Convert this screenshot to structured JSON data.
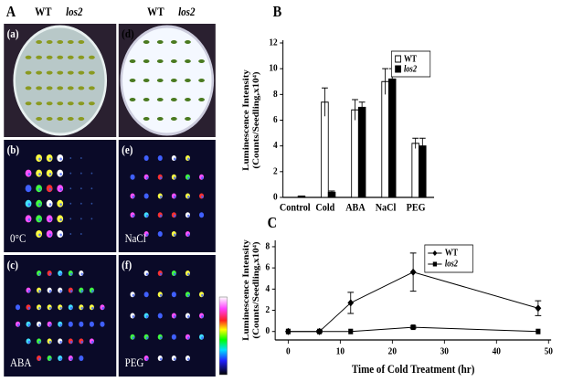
{
  "figure": {
    "panel_a": {
      "label": "A",
      "header_left": [
        "WT",
        "los2"
      ],
      "header_right": [
        "WT",
        "los2"
      ],
      "photos": [
        {
          "tag": "(a)"
        },
        {
          "tag": "(d)"
        },
        {
          "tag": "(b)",
          "condition": "0°C"
        },
        {
          "tag": "(e)",
          "condition": "NaCl"
        },
        {
          "tag": "(c)",
          "condition": "ABA"
        },
        {
          "tag": "(f)",
          "condition": "PEG"
        }
      ]
    }
  },
  "chart_data": [
    {
      "type": "bar",
      "panel": "B",
      "ylabel": [
        "Luminescence Intensity",
        "(Counts/Seedling,x10⁴)"
      ],
      "categories": [
        "Control",
        "Cold",
        "ABA",
        "NaCl",
        "PEG"
      ],
      "series": [
        {
          "name": "WT",
          "color": "#ffffff",
          "values": [
            0,
            7.4,
            6.8,
            9.0,
            4.2
          ],
          "errors": [
            0,
            1.1,
            0.8,
            1.0,
            0.4
          ]
        },
        {
          "name": "los2",
          "color": "#000000",
          "values": [
            0.1,
            0.4,
            7.0,
            9.2,
            4.0
          ],
          "errors": [
            0,
            0.1,
            0.4,
            0.8,
            0.6
          ]
        }
      ],
      "ylim": [
        0,
        12
      ],
      "yticks": [
        0,
        2,
        4,
        6,
        8,
        10,
        12
      ],
      "legend": "top-right"
    },
    {
      "type": "line",
      "panel": "C",
      "ylabel": [
        "Luminescence Intensity",
        "(Counts/Seedling,x10⁴)"
      ],
      "xlabel": "Time of Cold Treatment (hr)",
      "x": [
        0,
        6,
        12,
        24,
        48
      ],
      "series": [
        {
          "name": "WT",
          "color": "#000000",
          "marker": "diamond",
          "values": [
            0,
            0,
            2.7,
            5.6,
            2.2
          ],
          "errors": [
            0,
            0.1,
            1.0,
            1.8,
            0.7
          ]
        },
        {
          "name": "los2",
          "color": "#000000",
          "marker": "square",
          "values": [
            0,
            0,
            0,
            0.4,
            0
          ],
          "errors": [
            0,
            0,
            0,
            0.1,
            0
          ]
        }
      ],
      "xlim": [
        -2.5,
        50.5
      ],
      "xticks": [
        0,
        10,
        20,
        30,
        40,
        50
      ],
      "ylim": [
        -0.8,
        8.6
      ],
      "yticks": [
        0,
        2,
        4,
        6,
        8
      ],
      "legend": "top-right"
    }
  ]
}
